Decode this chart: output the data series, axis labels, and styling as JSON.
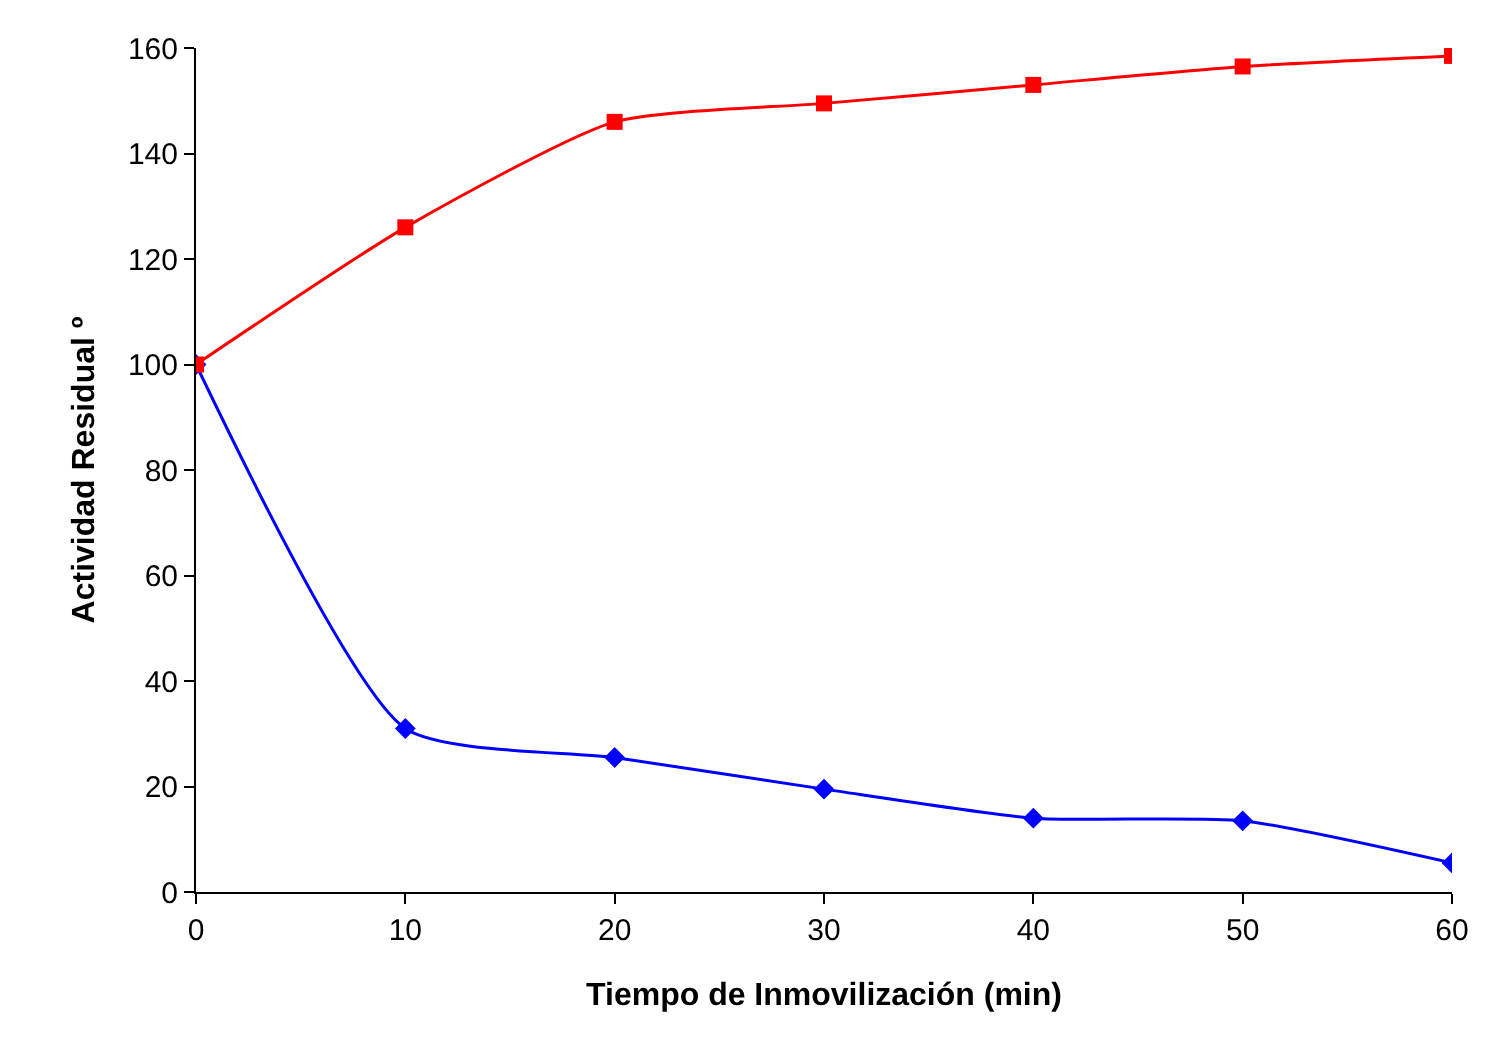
{
  "chart_data": {
    "type": "line",
    "xlabel": "Tiempo de Inmovilización (min)",
    "ylabel": "Actividad Residual º",
    "x": [
      0,
      10,
      20,
      30,
      40,
      50,
      60
    ],
    "series": [
      {
        "color": "#ff0000",
        "marker": "square",
        "values": [
          100,
          126,
          146,
          149.5,
          153,
          156.5,
          158.5
        ]
      },
      {
        "color": "#0000ff",
        "marker": "diamond",
        "values": [
          100,
          31,
          25.5,
          19.5,
          14,
          13.5,
          5.5
        ]
      }
    ],
    "xlim": [
      0,
      60
    ],
    "xticks": [
      0,
      10,
      20,
      30,
      40,
      50,
      60
    ],
    "ylim": [
      0,
      160
    ],
    "yticks": [
      0,
      20,
      40,
      60,
      80,
      100,
      120,
      140,
      160
    ],
    "line_style": "solid"
  }
}
